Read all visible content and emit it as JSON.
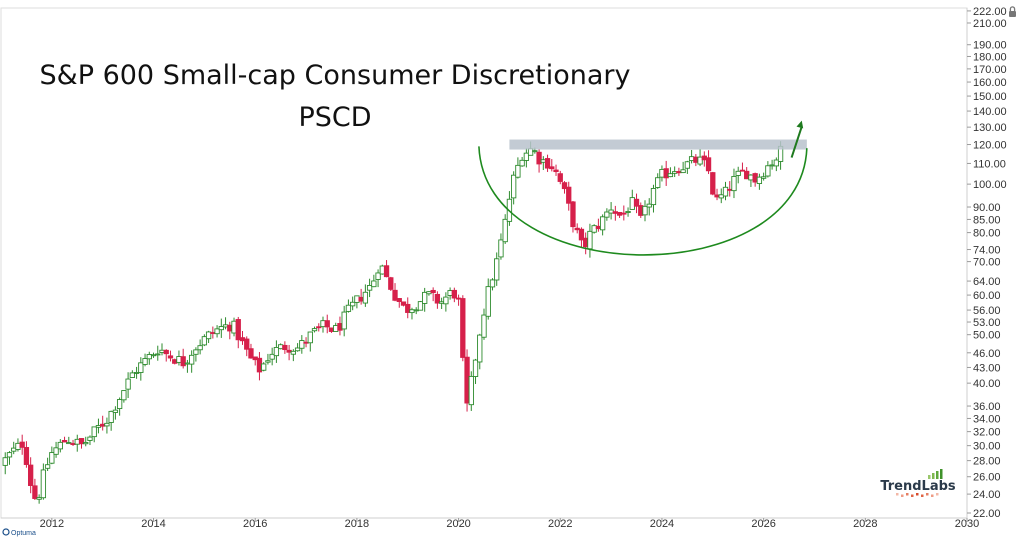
{
  "chart_data": {
    "type": "candlestick",
    "title": "S&P 600 Small-cap Consumer Discretionary",
    "subtitle": "PSCD",
    "y_scale": "log",
    "ylim": [
      21.5,
      225
    ],
    "xlim": [
      2011.0,
      2030.0
    ],
    "x_ticks": [
      "2012",
      "2014",
      "2016",
      "2018",
      "2020",
      "2022",
      "2024",
      "2026",
      "2028",
      "2030"
    ],
    "y_ticks": [
      "222.00",
      "210.00",
      "190.00",
      "180.00",
      "170.00",
      "160.00",
      "150.00",
      "140.00",
      "130.00",
      "120.00",
      "110.00",
      "100.00",
      "90.00",
      "85.00",
      "80.00",
      "74.00",
      "70.00",
      "64.00",
      "60.00",
      "56.00",
      "53.00",
      "50.00",
      "46.00",
      "43.00",
      "40.00",
      "36.00",
      "34.00",
      "32.00",
      "30.00",
      "28.00",
      "26.00",
      "24.00",
      "22.00"
    ],
    "colors": {
      "up": "#2e8b2e",
      "down": "#d6204a",
      "resistance": "#b9c2cc",
      "cup": "#1e8a1e",
      "arrow": "#1e7a1e",
      "axis_text": "#333333"
    },
    "series_path": [
      [
        2011.0,
        27.5
      ],
      [
        2011.2,
        29
      ],
      [
        2011.45,
        30.5
      ],
      [
        2011.55,
        26
      ],
      [
        2011.7,
        23
      ],
      [
        2011.85,
        26.5
      ],
      [
        2012.0,
        29
      ],
      [
        2012.3,
        31
      ],
      [
        2012.6,
        30
      ],
      [
        2012.9,
        32.5
      ],
      [
        2013.1,
        34
      ],
      [
        2013.3,
        37
      ],
      [
        2013.6,
        42
      ],
      [
        2013.9,
        45
      ],
      [
        2014.1,
        47
      ],
      [
        2014.3,
        45.5
      ],
      [
        2014.6,
        44
      ],
      [
        2014.8,
        47
      ],
      [
        2015.1,
        50
      ],
      [
        2015.3,
        51.5
      ],
      [
        2015.55,
        52.5
      ],
      [
        2015.75,
        48
      ],
      [
        2015.95,
        44
      ],
      [
        2016.1,
        42.5
      ],
      [
        2016.3,
        46
      ],
      [
        2016.6,
        47.5
      ],
      [
        2016.85,
        47
      ],
      [
        2017.1,
        50
      ],
      [
        2017.35,
        52
      ],
      [
        2017.6,
        51
      ],
      [
        2017.85,
        56
      ],
      [
        2018.1,
        60
      ],
      [
        2018.3,
        63
      ],
      [
        2018.45,
        70
      ],
      [
        2018.55,
        66
      ],
      [
        2018.75,
        60
      ],
      [
        2018.95,
        56
      ],
      [
        2019.2,
        58
      ],
      [
        2019.4,
        60
      ],
      [
        2019.65,
        58
      ],
      [
        2019.8,
        60
      ],
      [
        2019.9,
        61
      ],
      [
        2020.0,
        58
      ],
      [
        2020.15,
        35
      ],
      [
        2020.3,
        43
      ],
      [
        2020.45,
        53
      ],
      [
        2020.6,
        62
      ],
      [
        2020.75,
        70
      ],
      [
        2020.9,
        82
      ],
      [
        2021.05,
        100
      ],
      [
        2021.25,
        115
      ],
      [
        2021.45,
        118
      ],
      [
        2021.6,
        112
      ],
      [
        2021.8,
        110
      ],
      [
        2021.95,
        104
      ],
      [
        2022.1,
        95
      ],
      [
        2022.25,
        84
      ],
      [
        2022.45,
        74
      ],
      [
        2022.6,
        80
      ],
      [
        2022.8,
        84
      ],
      [
        2023.0,
        90
      ],
      [
        2023.2,
        86
      ],
      [
        2023.4,
        92
      ],
      [
        2023.6,
        84
      ],
      [
        2023.8,
        96
      ],
      [
        2024.0,
        104
      ],
      [
        2024.2,
        107
      ],
      [
        2024.45,
        109
      ],
      [
        2024.7,
        112
      ],
      [
        2024.9,
        108
      ],
      [
        2025.05,
        92
      ],
      [
        2025.25,
        96
      ],
      [
        2025.45,
        103
      ],
      [
        2025.65,
        106
      ],
      [
        2025.85,
        102
      ],
      [
        2026.05,
        108
      ],
      [
        2026.25,
        113
      ],
      [
        2026.35,
        117
      ]
    ],
    "annotations": {
      "resistance_level": 120,
      "resistance_range": [
        2021.0,
        2026.85
      ],
      "cup_curve": [
        [
          2020.4,
          119
        ],
        [
          2023.5,
          63.5
        ],
        [
          2026.85,
          118
        ]
      ],
      "breakout_arrow": {
        "from": [
          2026.55,
          113
        ],
        "to": [
          2026.75,
          134
        ]
      }
    }
  },
  "watermark": {
    "brand_name": "TrendLabs"
  },
  "footer": {
    "provider": "Optuma"
  },
  "toolbar": {
    "lock_icon": "lock-icon"
  }
}
